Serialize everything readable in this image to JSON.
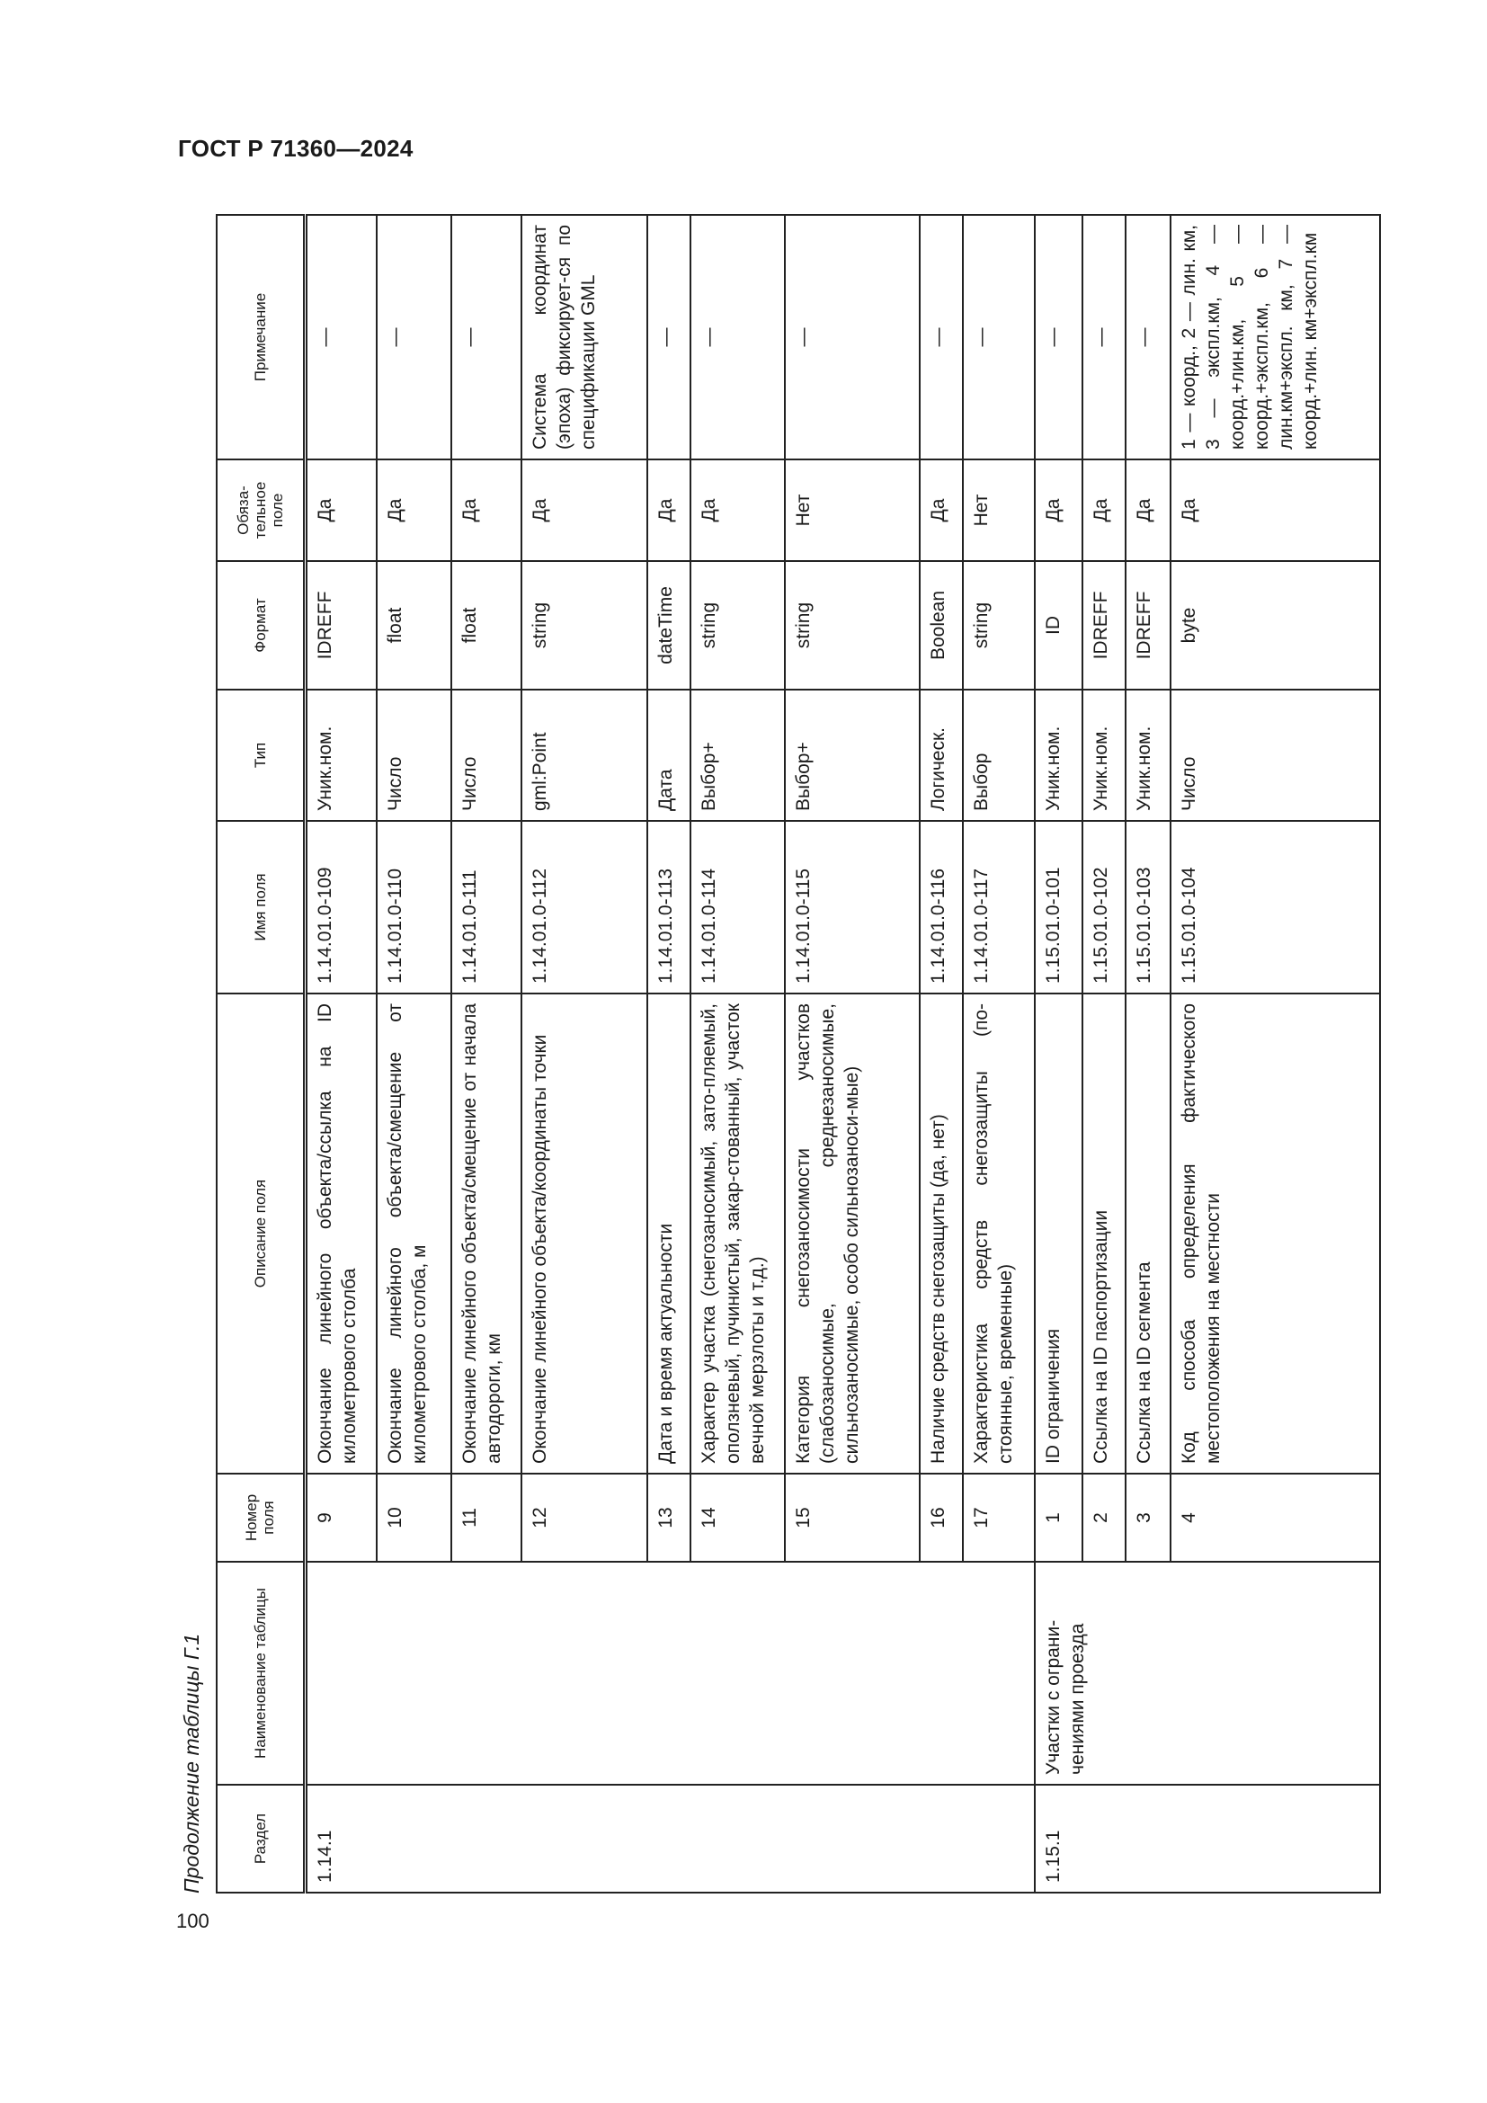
{
  "document": {
    "header": "ГОСТ Р 71360—2024",
    "caption": "Продолжение таблицы Г.1",
    "page_number": "100"
  },
  "table": {
    "columns": [
      "Раздел",
      "Наименование таблицы",
      "Номер поля",
      "Описание поля",
      "Имя поля",
      "Тип",
      "Формат",
      "Обяза-тельное поле",
      "Примечание"
    ],
    "groups": [
      {
        "section": "1.14.1",
        "table_name": "",
        "rows": [
          {
            "num": "9",
            "desc": "Окончание линейного объекта/ссылка на ID километрового столба",
            "field": "1.14.01.0-109",
            "type": "Уник.ном.",
            "format": "IDREFF",
            "required": "Да",
            "note": "—"
          },
          {
            "num": "10",
            "desc": "Окончание линейного объекта/смещение от километрового столба, м",
            "field": "1.14.01.0-110",
            "type": "Число",
            "format": "float",
            "required": "Да",
            "note": "—"
          },
          {
            "num": "11",
            "desc": "Окончание линейного объекта/смещение от начала автодороги, км",
            "field": "1.14.01.0-111",
            "type": "Число",
            "format": "float",
            "required": "Да",
            "note": "—"
          },
          {
            "num": "12",
            "desc": "Окончание линейного объекта/координаты точки",
            "field": "1.14.01.0-112",
            "type": "gml:Point",
            "format": "string",
            "required": "Да",
            "note": "Система координат (эпоха) фиксирует-ся по спецификации GML"
          },
          {
            "num": "13",
            "desc": "Дата и время актуальности",
            "field": "1.14.01.0-113",
            "type": "Дата",
            "format": "dateTime",
            "required": "Да",
            "note": "—"
          },
          {
            "num": "14",
            "desc": "Характер участка (снегозаносимый, зато-пляемый, оползневый, пучинистый, закар-стованный, участок вечной мерзлоты и т.д.)",
            "field": "1.14.01.0-114",
            "type": "Выбор+",
            "format": "string",
            "required": "Да",
            "note": "—"
          },
          {
            "num": "15",
            "desc": "Категория снегозаносимости участков (слабозаносимые, среднезаносимые, сильнозаносимые, особо сильнозаноси-мые)",
            "field": "1.14.01.0-115",
            "type": "Выбор+",
            "format": "string",
            "required": "Нет",
            "note": "—"
          },
          {
            "num": "16",
            "desc": "Наличие средств снегозащиты (да, нет)",
            "field": "1.14.01.0-116",
            "type": "Логическ.",
            "format": "Boolean",
            "required": "Да",
            "note": "—"
          },
          {
            "num": "17",
            "desc": "Характеристика средств снегозащиты (по-стоянные, временные)",
            "field": "1.14.01.0-117",
            "type": "Выбор",
            "format": "string",
            "required": "Нет",
            "note": "—"
          }
        ]
      },
      {
        "section": "1.15.1",
        "table_name": "Участки с ограни-чениями проезда",
        "rows": [
          {
            "num": "1",
            "desc": "ID ограничения",
            "field": "1.15.01.0-101",
            "type": "Уник.ном.",
            "format": "ID",
            "required": "Да",
            "note": "—"
          },
          {
            "num": "2",
            "desc": "Ссылка на ID паспортизации",
            "field": "1.15.01.0-102",
            "type": "Уник.ном.",
            "format": "IDREFF",
            "required": "Да",
            "note": "—"
          },
          {
            "num": "3",
            "desc": "Ссылка на ID сегмента",
            "field": "1.15.01.0-103",
            "type": "Уник.ном.",
            "format": "IDREFF",
            "required": "Да",
            "note": "—"
          },
          {
            "num": "4",
            "desc": "Код способа определения фактического местоположения на местности",
            "field": "1.15.01.0-104",
            "type": "Число",
            "format": "byte",
            "required": "Да",
            "note": "1 — коорд., 2 — лин. км, 3 — экспл.км, 4 — коорд.+лин.км, 5 — коорд.+экспл.км, 6 — лин.км+экспл. км, 7 — коорд.+лин. км+экспл.км"
          }
        ]
      }
    ]
  }
}
